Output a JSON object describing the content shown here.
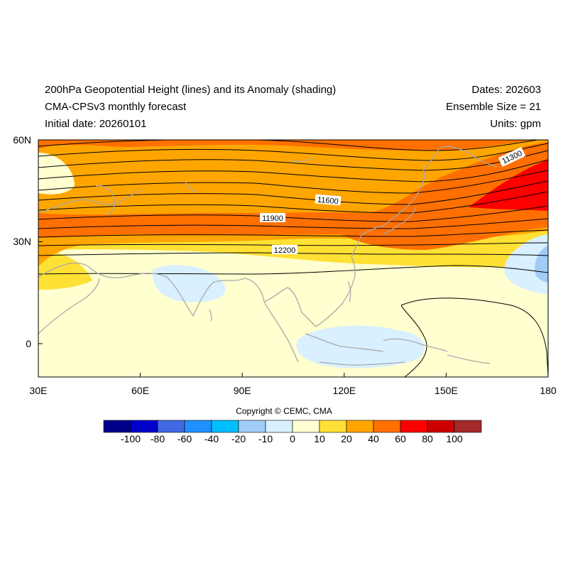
{
  "header": {
    "title": "200hPa Geopotential Height (lines) and its Anomaly (shading)",
    "model": "CMA-CPSv3 monthly forecast",
    "initial_date": "Initial date: 20260101",
    "dates": "Dates: 202603",
    "ensemble": "Ensemble Size = 21",
    "units": "Units: gpm"
  },
  "map": {
    "lon_ticks": [
      "30E",
      "60E",
      "90E",
      "120E",
      "150E",
      "180"
    ],
    "lat_ticks": [
      "60N",
      "30N",
      "0"
    ],
    "contour_labels": [
      "11300",
      "11600",
      "11900",
      "12200"
    ]
  },
  "colorbar": {
    "colors": [
      "#00008b",
      "#0000cd",
      "#4169e1",
      "#1e90ff",
      "#00bfff",
      "#a0cdf8",
      "#d8f0ff",
      "#ffffd0",
      "#ffe135",
      "#ffa500",
      "#ff7000",
      "#ff0000",
      "#cd0000",
      "#a52a2a"
    ],
    "labels": [
      "-100",
      "-80",
      "-60",
      "-40",
      "-20",
      "-10",
      "0",
      "10",
      "20",
      "40",
      "60",
      "80",
      "100"
    ]
  },
  "footer": {
    "copyright": "Copyright © CEMC, CMA"
  }
}
